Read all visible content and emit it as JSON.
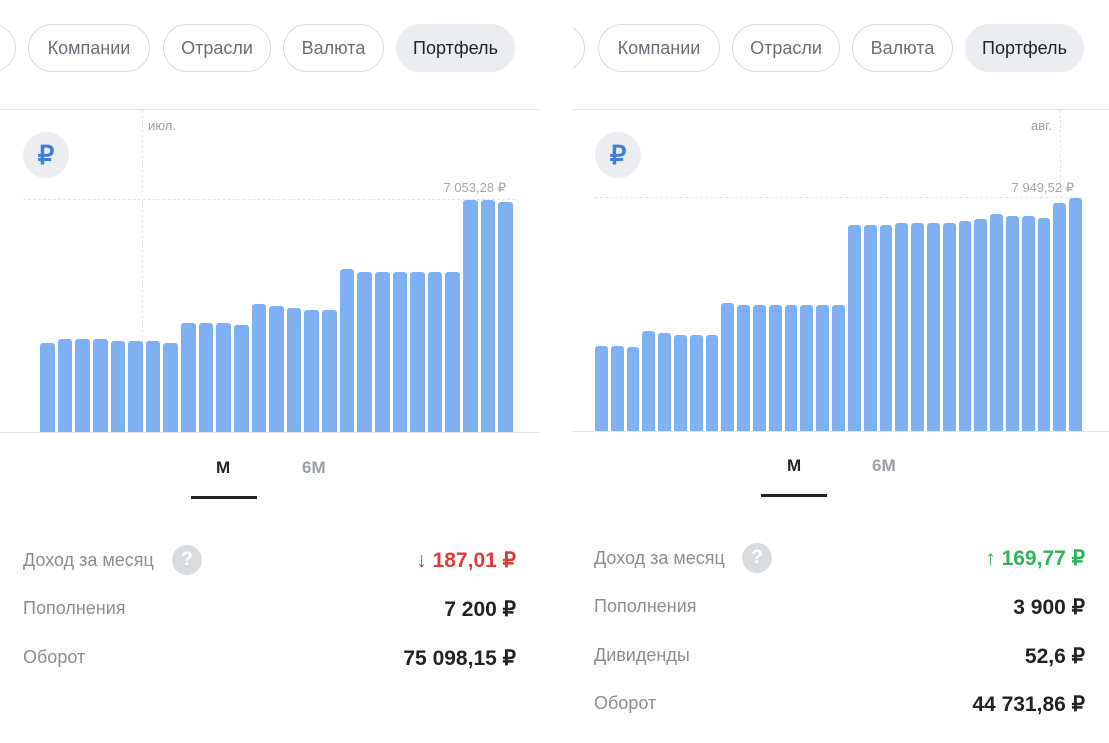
{
  "left": {
    "chips": [
      "Компании",
      "Отрасли",
      "Валюта",
      "Портфель"
    ],
    "currency_symbol": "₽",
    "month_marker": "июл.",
    "max_label": "7 053,28 ₽",
    "periods": [
      "M",
      "6M"
    ],
    "active_period": "M",
    "chart_data": {
      "type": "bar",
      "values": [
        2.3,
        2.4,
        2.4,
        2.4,
        2.35,
        2.35,
        2.35,
        2.3,
        2.8,
        2.8,
        2.8,
        2.75,
        3.3,
        3.25,
        3.2,
        3.15,
        3.15,
        4.2,
        4.1,
        4.1,
        4.1,
        4.1,
        4.1,
        4.1,
        5.95,
        5.95,
        5.9
      ],
      "max_value_label": "7 053,28 ₽"
    },
    "stats": [
      {
        "label": "Доход за месяц",
        "value": "↓ 187,01 ₽",
        "tone": "negative",
        "help": "?"
      },
      {
        "label": "Пополнения",
        "value": "7 200 ₽",
        "tone": "neutral"
      },
      {
        "label": "Оборот",
        "value": "75 098,15 ₽",
        "tone": "neutral"
      }
    ],
    "colors": {
      "bar": "#7fb0f4",
      "negative": "#e03a3a"
    }
  },
  "right": {
    "chips": [
      "Компании",
      "Отрасли",
      "Валюта",
      "Портфель"
    ],
    "currency_symbol": "₽",
    "month_marker": "авг.",
    "max_label": "7 949,52 ₽",
    "periods": [
      "M",
      "6M"
    ],
    "active_period": "M",
    "chart_data": {
      "type": "bar",
      "values": [
        2.4,
        2.4,
        2.35,
        2.8,
        2.75,
        2.7,
        2.7,
        2.7,
        3.6,
        3.55,
        3.55,
        3.55,
        3.55,
        3.55,
        3.55,
        3.55,
        5.8,
        5.8,
        5.8,
        5.85,
        5.85,
        5.85,
        5.85,
        5.9,
        5.95,
        6.1,
        6.05,
        6.05,
        6.0,
        6.4,
        6.55
      ],
      "max_value_label": "7 949,52 ₽"
    },
    "stats": [
      {
        "label": "Доход за месяц",
        "value": "↑ 169,77 ₽",
        "tone": "positive",
        "help": "?"
      },
      {
        "label": "Пополнения",
        "value": "3 900 ₽",
        "tone": "neutral"
      },
      {
        "label": "Дивиденды",
        "value": "52,6 ₽",
        "tone": "neutral"
      },
      {
        "label": "Оборот",
        "value": "44 731,86 ₽",
        "tone": "neutral"
      }
    ],
    "colors": {
      "bar": "#7fb0f4",
      "positive": "#2cb55a"
    }
  }
}
